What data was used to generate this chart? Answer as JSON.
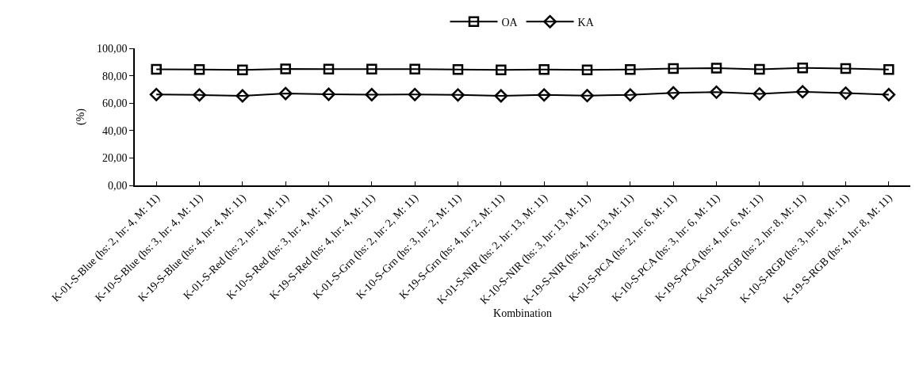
{
  "chart_data": {
    "type": "line",
    "xlabel": "Kombination",
    "ylabel": "(%)",
    "categories": [
      "K-01-S-Blue (hs: 2, hr: 4, M: 11)",
      "K-10-S-Blue (hs: 3, hr: 4, M: 11)",
      "K-19-S-Blue (hs: 4, hr: 4, M: 11)",
      "K-01-S-Red (hs: 2, hr: 4, M: 11)",
      "K-10-S-Red (hs: 3, hr: 4, M: 11)",
      "K-19-S-Red (hs: 4, hr: 4, M: 11)",
      "K-01-S-Grn (hs: 2, hr: 2, M: 11)",
      "K-10-S-Grn (hs: 3, hr: 2, M: 11)",
      "K-19-S-Grn (hs: 4, hr: 2, M: 11)",
      "K-01-S-NIR (hs: 2, hr: 13, M: 11)",
      "K-10-S-NIR (hs: 3, hr: 13, M: 11)",
      "K-19-S-NIR (hs: 4, hr: 13, M: 11)",
      "K-01-S-PCA (hs: 2, hr: 6, M: 11)",
      "K-10-S-PCA (hs: 3, hr: 6, M: 11)",
      "K-19-S-PCA (hs: 4, hr: 6, M: 11)",
      "K-01-S-RGB (hs: 2, hr: 8, M: 11)",
      "K-10-S-RGB (hs: 3, hr: 8, M: 11)",
      "K-19-S-RGB (hs: 4, hr: 8, M: 11)"
    ],
    "series": [
      {
        "name": "OA",
        "color": "#000000",
        "marker": "square",
        "values": [
          84.7,
          84.5,
          84.2,
          85.0,
          84.8,
          84.8,
          84.8,
          84.5,
          84.2,
          84.5,
          84.3,
          84.5,
          85.2,
          85.5,
          84.7,
          85.7,
          85.3,
          84.5
        ]
      },
      {
        "name": "KA",
        "color": "#000000",
        "marker": "diamond",
        "values": [
          66.3,
          66.0,
          65.3,
          67.0,
          66.5,
          66.2,
          66.3,
          66.0,
          65.3,
          66.0,
          65.5,
          66.0,
          67.5,
          68.0,
          66.7,
          68.3,
          67.3,
          66.2
        ]
      }
    ],
    "ylim": [
      0,
      100
    ],
    "yticks": [
      {
        "value": 0,
        "label": "0,00"
      },
      {
        "value": 20,
        "label": "20,00"
      },
      {
        "value": 40,
        "label": "40,00"
      },
      {
        "value": 60,
        "label": "60,00"
      },
      {
        "value": 80,
        "label": "80,00"
      },
      {
        "value": 100,
        "label": "100,00"
      }
    ],
    "grid": false,
    "legend": "top",
    "line_style": "solid"
  }
}
